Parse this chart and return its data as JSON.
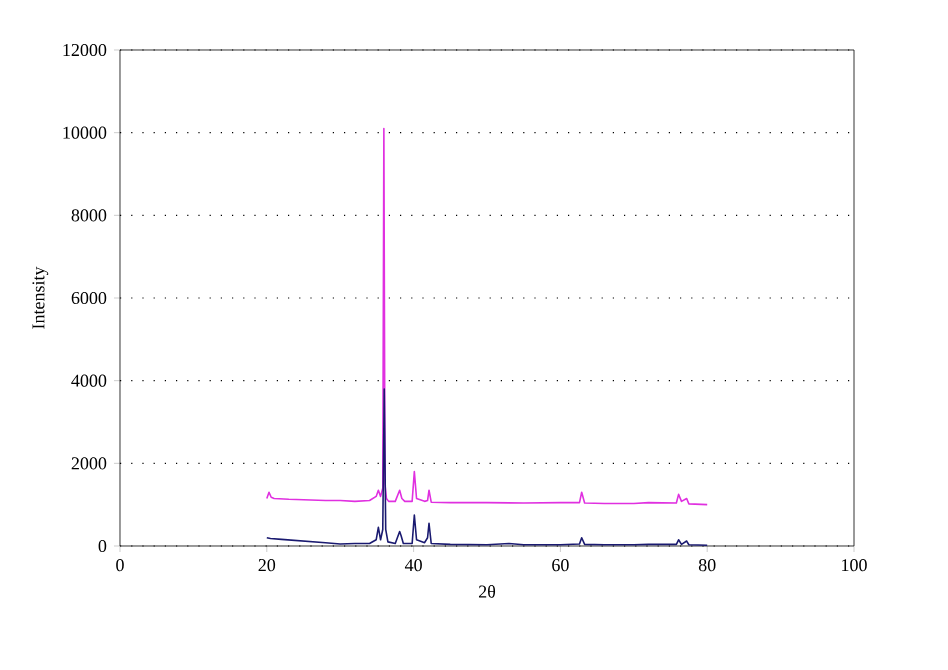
{
  "chart_data": {
    "type": "line",
    "xlabel": "2θ",
    "ylabel": "Intensity",
    "xlim": [
      0,
      100
    ],
    "ylim": [
      0,
      12000
    ],
    "xticks": [
      0,
      20,
      40,
      60,
      80,
      100
    ],
    "yticks": [
      0,
      2000,
      4000,
      6000,
      8000,
      10000,
      12000
    ],
    "grid": "y",
    "marker": "none",
    "line_style": "solid",
    "series": [
      {
        "color": "#1a1a70",
        "x": [
          20,
          20.5,
          22,
          25,
          28,
          30,
          32,
          34,
          34.9,
          35.2,
          35.5,
          35.8,
          36.0,
          36.2,
          36.5,
          37.5,
          38.1,
          38.3,
          38.6,
          39.8,
          40.1,
          40.4,
          41.5,
          41.9,
          42.1,
          42.4,
          45,
          50,
          53,
          55,
          60,
          62.6,
          62.9,
          63.3,
          66,
          70,
          72,
          75.8,
          76.1,
          76.5,
          77.2,
          77.5,
          80
        ],
        "values": [
          200,
          180,
          160,
          120,
          80,
          50,
          60,
          60,
          150,
          450,
          150,
          400,
          3800,
          400,
          100,
          60,
          350,
          250,
          60,
          60,
          750,
          150,
          80,
          200,
          550,
          60,
          40,
          30,
          60,
          30,
          30,
          50,
          200,
          40,
          30,
          30,
          40,
          40,
          150,
          40,
          120,
          30,
          20
        ]
      },
      {
        "color": "#e030e0",
        "x": [
          20,
          20.3,
          20.6,
          21,
          23,
          25,
          28,
          30,
          32,
          34,
          34.9,
          35.2,
          35.5,
          35.8,
          35.95,
          36.1,
          36.3,
          36.6,
          37.5,
          38.1,
          38.4,
          38.8,
          39.8,
          40.1,
          40.4,
          41.5,
          41.9,
          42.1,
          42.4,
          45,
          50,
          55,
          60,
          62.6,
          62.9,
          63.3,
          66,
          70,
          72,
          75.8,
          76.1,
          76.5,
          77.2,
          77.5,
          80
        ],
        "values": [
          1150,
          1300,
          1180,
          1150,
          1130,
          1120,
          1100,
          1100,
          1080,
          1100,
          1200,
          1350,
          1200,
          1400,
          10100,
          1500,
          1150,
          1080,
          1080,
          1350,
          1150,
          1080,
          1080,
          1800,
          1150,
          1080,
          1100,
          1350,
          1060,
          1050,
          1050,
          1040,
          1050,
          1050,
          1300,
          1040,
          1030,
          1030,
          1050,
          1040,
          1250,
          1080,
          1150,
          1020,
          1000
        ]
      }
    ]
  }
}
